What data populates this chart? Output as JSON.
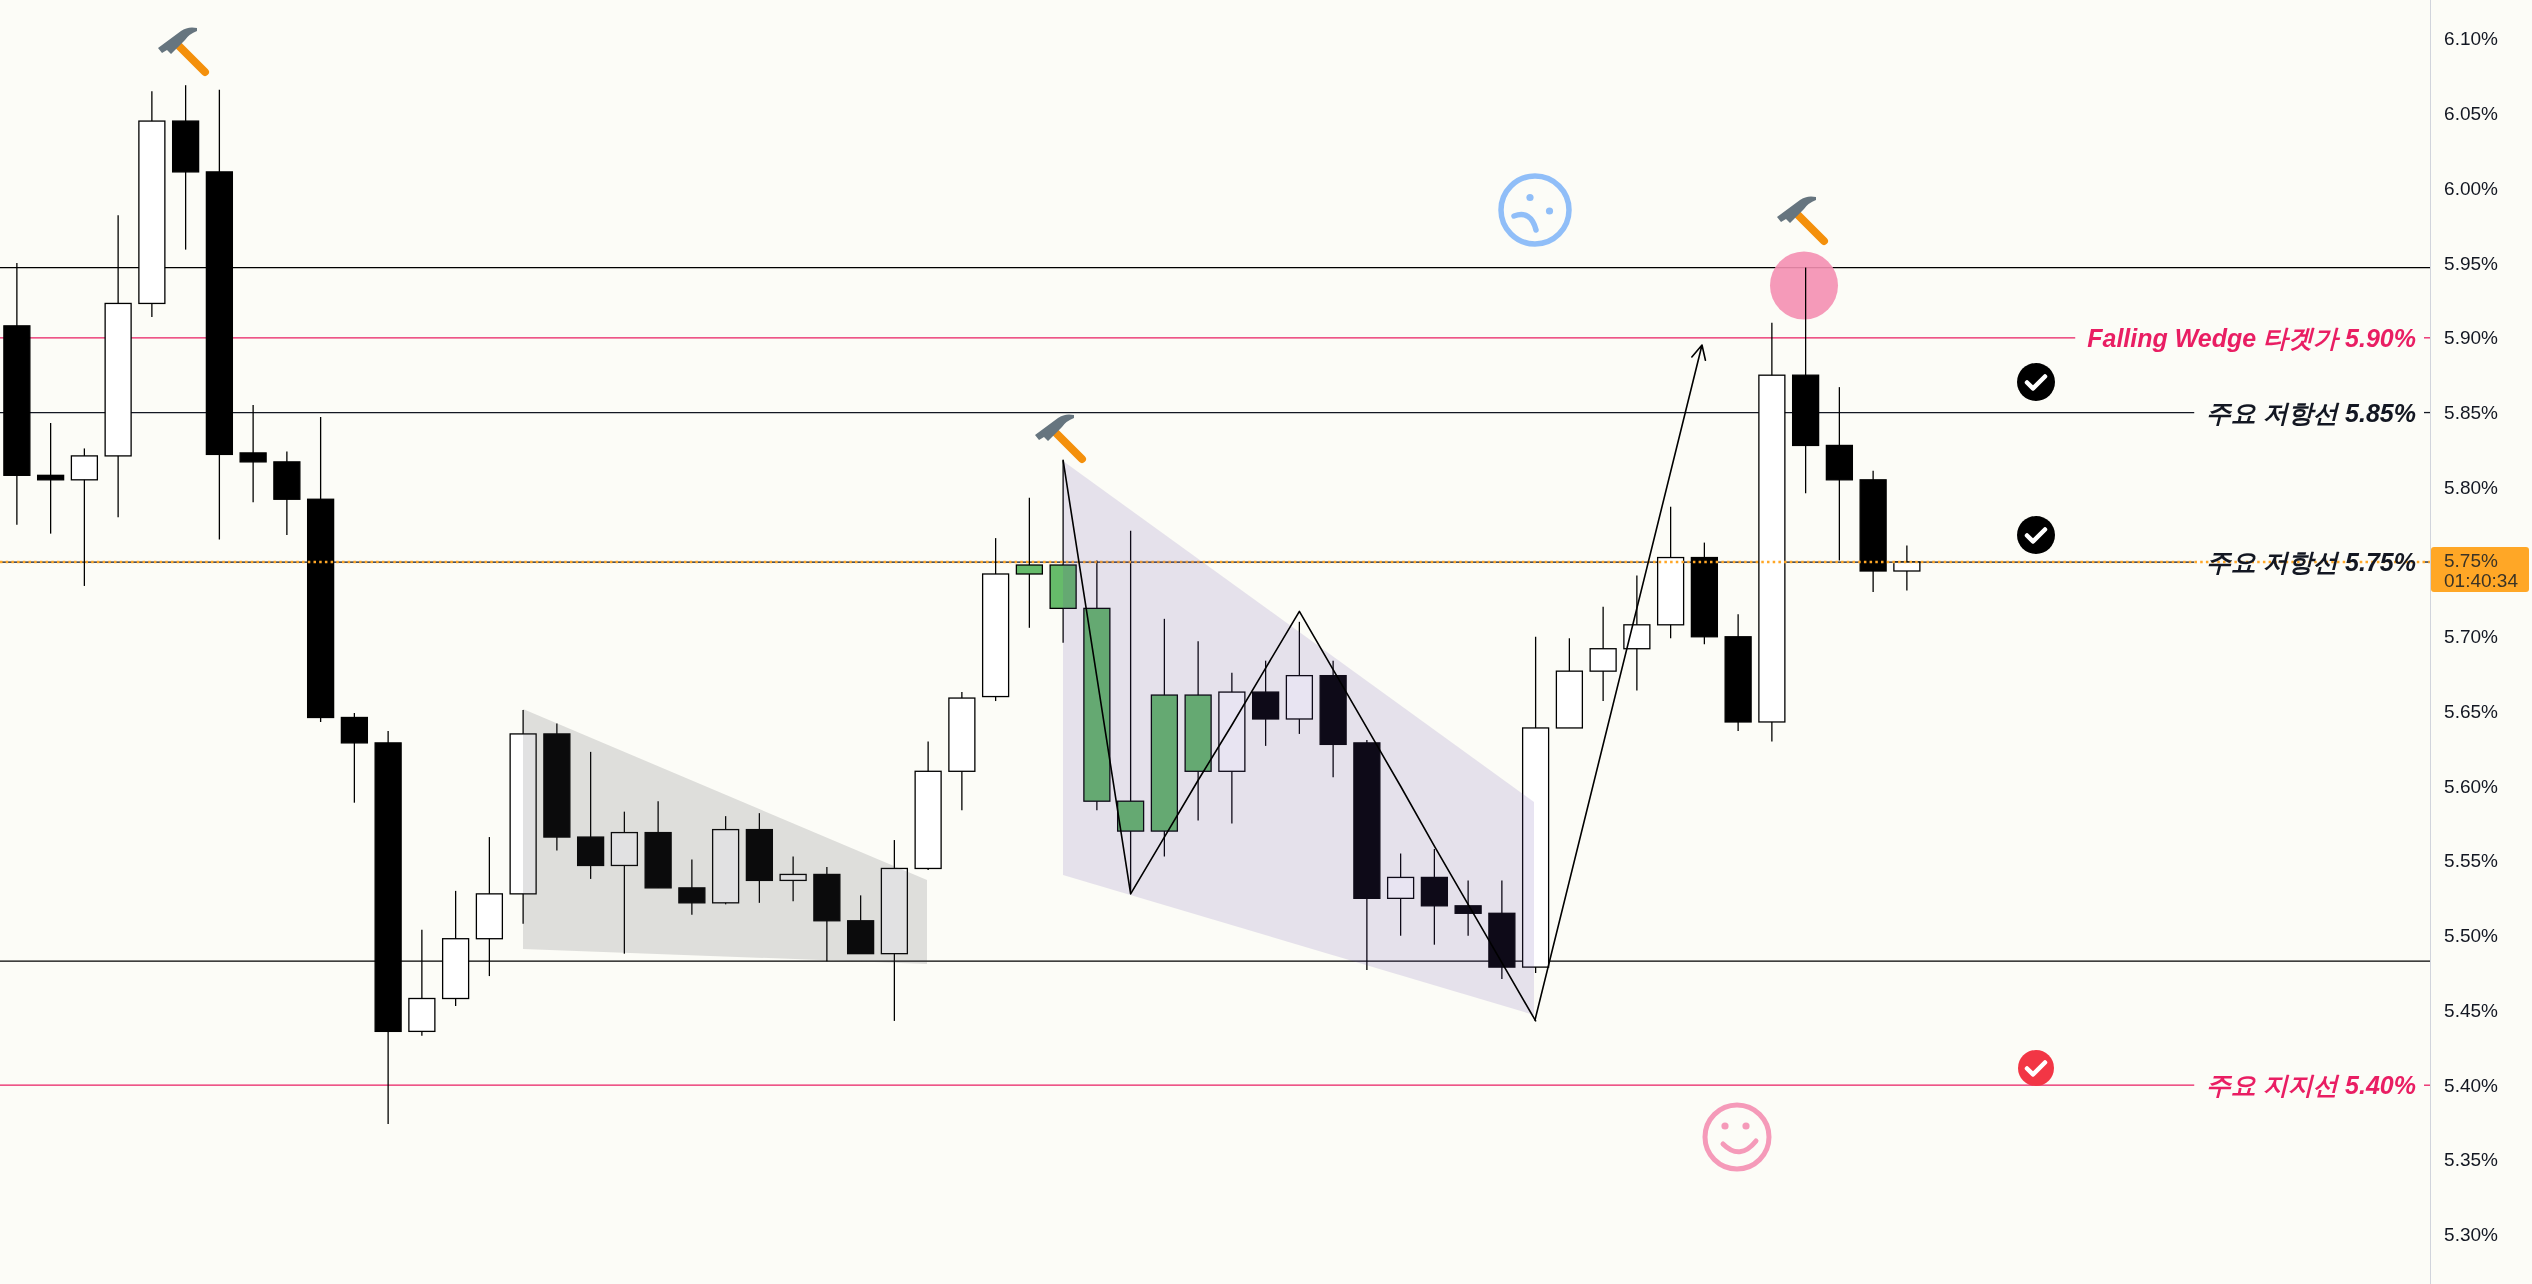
{
  "chart_data": {
    "type": "candlestick",
    "categories": [
      null,
      null,
      null,
      null,
      null,
      null,
      null,
      null,
      null,
      null,
      null,
      null,
      null,
      null,
      null,
      null,
      null,
      null,
      null,
      null,
      null,
      null,
      null,
      null,
      null,
      null,
      null,
      null,
      null,
      null,
      null,
      null,
      null,
      null,
      null,
      null,
      null,
      null,
      null,
      null,
      null,
      null,
      null,
      null,
      null,
      null,
      null,
      null,
      null,
      null,
      null,
      null,
      null,
      null,
      null,
      null,
      null,
      null,
      null,
      null,
      null,
      null,
      null,
      null,
      null,
      null,
      null,
      null,
      null,
      null,
      null,
      null
    ],
    "ohlc": [
      [
        5.908,
        5.95,
        5.775,
        5.808
      ],
      [
        5.808,
        5.843,
        5.769,
        5.805
      ],
      [
        5.805,
        5.826,
        5.734,
        5.821
      ],
      [
        5.821,
        5.982,
        5.78,
        5.923
      ],
      [
        5.923,
        6.065,
        5.914,
        6.045
      ],
      [
        6.045,
        6.069,
        5.959,
        6.011
      ],
      [
        6.011,
        6.066,
        5.765,
        5.822
      ],
      [
        5.823,
        5.855,
        5.79,
        5.817
      ],
      [
        5.817,
        5.824,
        5.768,
        5.792
      ],
      [
        5.792,
        5.847,
        5.643,
        5.646
      ],
      [
        5.646,
        5.649,
        5.589,
        5.629
      ],
      [
        5.629,
        5.637,
        5.374,
        5.436
      ],
      [
        5.436,
        5.504,
        5.433,
        5.458
      ],
      [
        5.458,
        5.53,
        5.453,
        5.498
      ],
      [
        5.498,
        5.566,
        5.473,
        5.528
      ],
      [
        5.528,
        5.651,
        5.508,
        5.635
      ],
      [
        5.635,
        5.642,
        5.557,
        5.566
      ],
      [
        5.566,
        5.623,
        5.538,
        5.547
      ],
      [
        5.547,
        5.583,
        5.488,
        5.569
      ],
      [
        5.569,
        5.59,
        5.532,
        5.532
      ],
      [
        5.532,
        5.551,
        5.514,
        5.522
      ],
      [
        5.522,
        5.58,
        5.521,
        5.571
      ],
      [
        5.571,
        5.582,
        5.522,
        5.537
      ],
      [
        5.537,
        5.553,
        5.523,
        5.541
      ],
      [
        5.541,
        5.546,
        5.483,
        5.51
      ],
      [
        5.51,
        5.527,
        5.488,
        5.488
      ],
      [
        5.488,
        5.564,
        5.443,
        5.545
      ],
      [
        5.545,
        5.63,
        5.544,
        5.61
      ],
      [
        5.61,
        5.663,
        5.584,
        5.659
      ],
      [
        5.66,
        5.766,
        5.657,
        5.742
      ],
      [
        5.742,
        5.793,
        5.706,
        5.748
      ],
      [
        5.748,
        5.818,
        5.696,
        5.719
      ],
      [
        5.719,
        5.751,
        5.584,
        5.59
      ],
      [
        5.59,
        5.771,
        5.53,
        5.57
      ],
      [
        5.57,
        5.712,
        5.553,
        5.661
      ],
      [
        5.661,
        5.697,
        5.577,
        5.61
      ],
      [
        5.61,
        5.676,
        5.575,
        5.663
      ],
      [
        5.663,
        5.684,
        5.627,
        5.645
      ],
      [
        5.645,
        5.71,
        5.635,
        5.674
      ],
      [
        5.674,
        5.684,
        5.606,
        5.628
      ],
      [
        5.629,
        5.631,
        5.477,
        5.525
      ],
      [
        5.525,
        5.555,
        5.5,
        5.539
      ],
      [
        5.539,
        5.558,
        5.494,
        5.52
      ],
      [
        5.52,
        5.537,
        5.5,
        5.515
      ],
      [
        5.515,
        5.537,
        5.471,
        5.479
      ],
      [
        5.479,
        5.7,
        5.475,
        5.639
      ],
      [
        5.639,
        5.699,
        5.639,
        5.677
      ],
      [
        5.677,
        5.72,
        5.657,
        5.692
      ],
      [
        5.692,
        5.741,
        5.664,
        5.708
      ],
      [
        5.708,
        5.787,
        5.699,
        5.753
      ],
      [
        5.753,
        5.763,
        5.695,
        5.7
      ],
      [
        5.7,
        5.715,
        5.637,
        5.643
      ],
      [
        5.643,
        5.91,
        5.63,
        5.875
      ],
      [
        5.875,
        5.947,
        5.796,
        5.828
      ],
      [
        5.828,
        5.867,
        5.751,
        5.805
      ],
      [
        5.805,
        5.811,
        5.73,
        5.744
      ],
      [
        5.744,
        5.761,
        5.731,
        5.75
      ],
      null,
      null,
      null,
      null,
      null,
      null,
      null,
      null,
      null,
      null,
      null,
      null,
      null,
      null,
      null
    ],
    "colors": [
      "#000000",
      "#000000",
      "#ffffff",
      "#ffffff",
      "#ffffff",
      "#000000",
      "#000000",
      "#000000",
      "#000000",
      "#000000",
      "#000000",
      "#000000",
      "#ffffff",
      "#ffffff",
      "#ffffff",
      "#ffffff",
      "#000000",
      "#000000",
      "#ffffff",
      "#000000",
      "#000000",
      "#ffffff",
      "#000000",
      "#ffffff",
      "#000000",
      "#000000",
      "#ffffff",
      "#ffffff",
      "#ffffff",
      "#ffffff",
      "#66bb6a",
      "#66bb6a",
      "#66bb6a",
      "#66bb6a",
      "#66bb6a",
      "#66bb6a",
      "#ffffff",
      "#000000",
      "#ffffff",
      "#000000",
      "#000000",
      "#ffffff",
      "#000000",
      "#000000",
      "#000000",
      "#ffffff",
      "#ffffff",
      "#ffffff",
      "#ffffff",
      "#ffffff",
      "#000000",
      "#000000",
      "#ffffff",
      "#000000",
      "#000000",
      "#000000",
      "#ffffff",
      null,
      null,
      null,
      null,
      null,
      null,
      null,
      null,
      null,
      null,
      null,
      null,
      null,
      null,
      null
    ],
    "series": [
      {
        "type": "line",
        "color": "#000000",
        "values": [
          null,
          null,
          null,
          null,
          null,
          null,
          null,
          null,
          null,
          null,
          null,
          null,
          null,
          null,
          null,
          null,
          null,
          null,
          null,
          null,
          null,
          null,
          null,
          null,
          null,
          null,
          null,
          null,
          null,
          null,
          null,
          5.818,
          5.673,
          5.528,
          5.566,
          5.604,
          5.641,
          5.679,
          5.717,
          5.678,
          5.639,
          5.6,
          5.56,
          5.521,
          5.482,
          5.443,
          null,
          null,
          null,
          null,
          null,
          null,
          null,
          null,
          null,
          null,
          null,
          null,
          null,
          null,
          null,
          null,
          null,
          null,
          null,
          null,
          null,
          null,
          null,
          null,
          null,
          null
        ]
      }
    ],
    "ylim": [
      5.267,
      6.126
    ],
    "yticks": [
      {
        "value": 5.3,
        "label": "5.30%"
      },
      {
        "value": 5.35,
        "label": "5.35%"
      },
      {
        "value": 5.4,
        "label": "5.40%"
      },
      {
        "value": 5.45,
        "label": "5.45%"
      },
      {
        "value": 5.5,
        "label": "5.50%"
      },
      {
        "value": 5.55,
        "label": "5.55%"
      },
      {
        "value": 5.6,
        "label": "5.60%"
      },
      {
        "value": 5.65,
        "label": "5.65%"
      },
      {
        "value": 5.7,
        "label": "5.70%"
      },
      {
        "value": 5.8,
        "label": "5.80%"
      },
      {
        "value": 5.85,
        "label": "5.85%"
      },
      {
        "value": 5.9,
        "label": "5.90%"
      },
      {
        "value": 5.95,
        "label": "5.95%"
      },
      {
        "value": 6.0,
        "label": "6.00%"
      },
      {
        "value": 6.05,
        "label": "6.05%"
      },
      {
        "value": 6.1,
        "label": "6.10%"
      }
    ],
    "tick_labels": "y",
    "ref_lines": [
      {
        "axis": "y",
        "value": 5.947
      },
      {
        "axis": "y",
        "value": 5.9,
        "label": "Falling Wedge 타겟가 5.90%",
        "color": "#e91e63"
      },
      {
        "axis": "y",
        "value": 5.85,
        "label": "주요 저항선 5.85%",
        "color": "#131722"
      },
      {
        "axis": "y",
        "value": 5.75,
        "label": "주요 저항선 5.75%",
        "color": "#131722"
      },
      {
        "axis": "y",
        "value": 5.483
      },
      {
        "axis": "y",
        "value": 5.4,
        "label": "주요 지지선 5.40%",
        "color": "#e91e63"
      },
      {
        "axis": "y",
        "value": 5.75,
        "label": "5.75%\n01:40:34",
        "color": "#ffa726",
        "line_style": "dotted"
      }
    ]
  }
}
